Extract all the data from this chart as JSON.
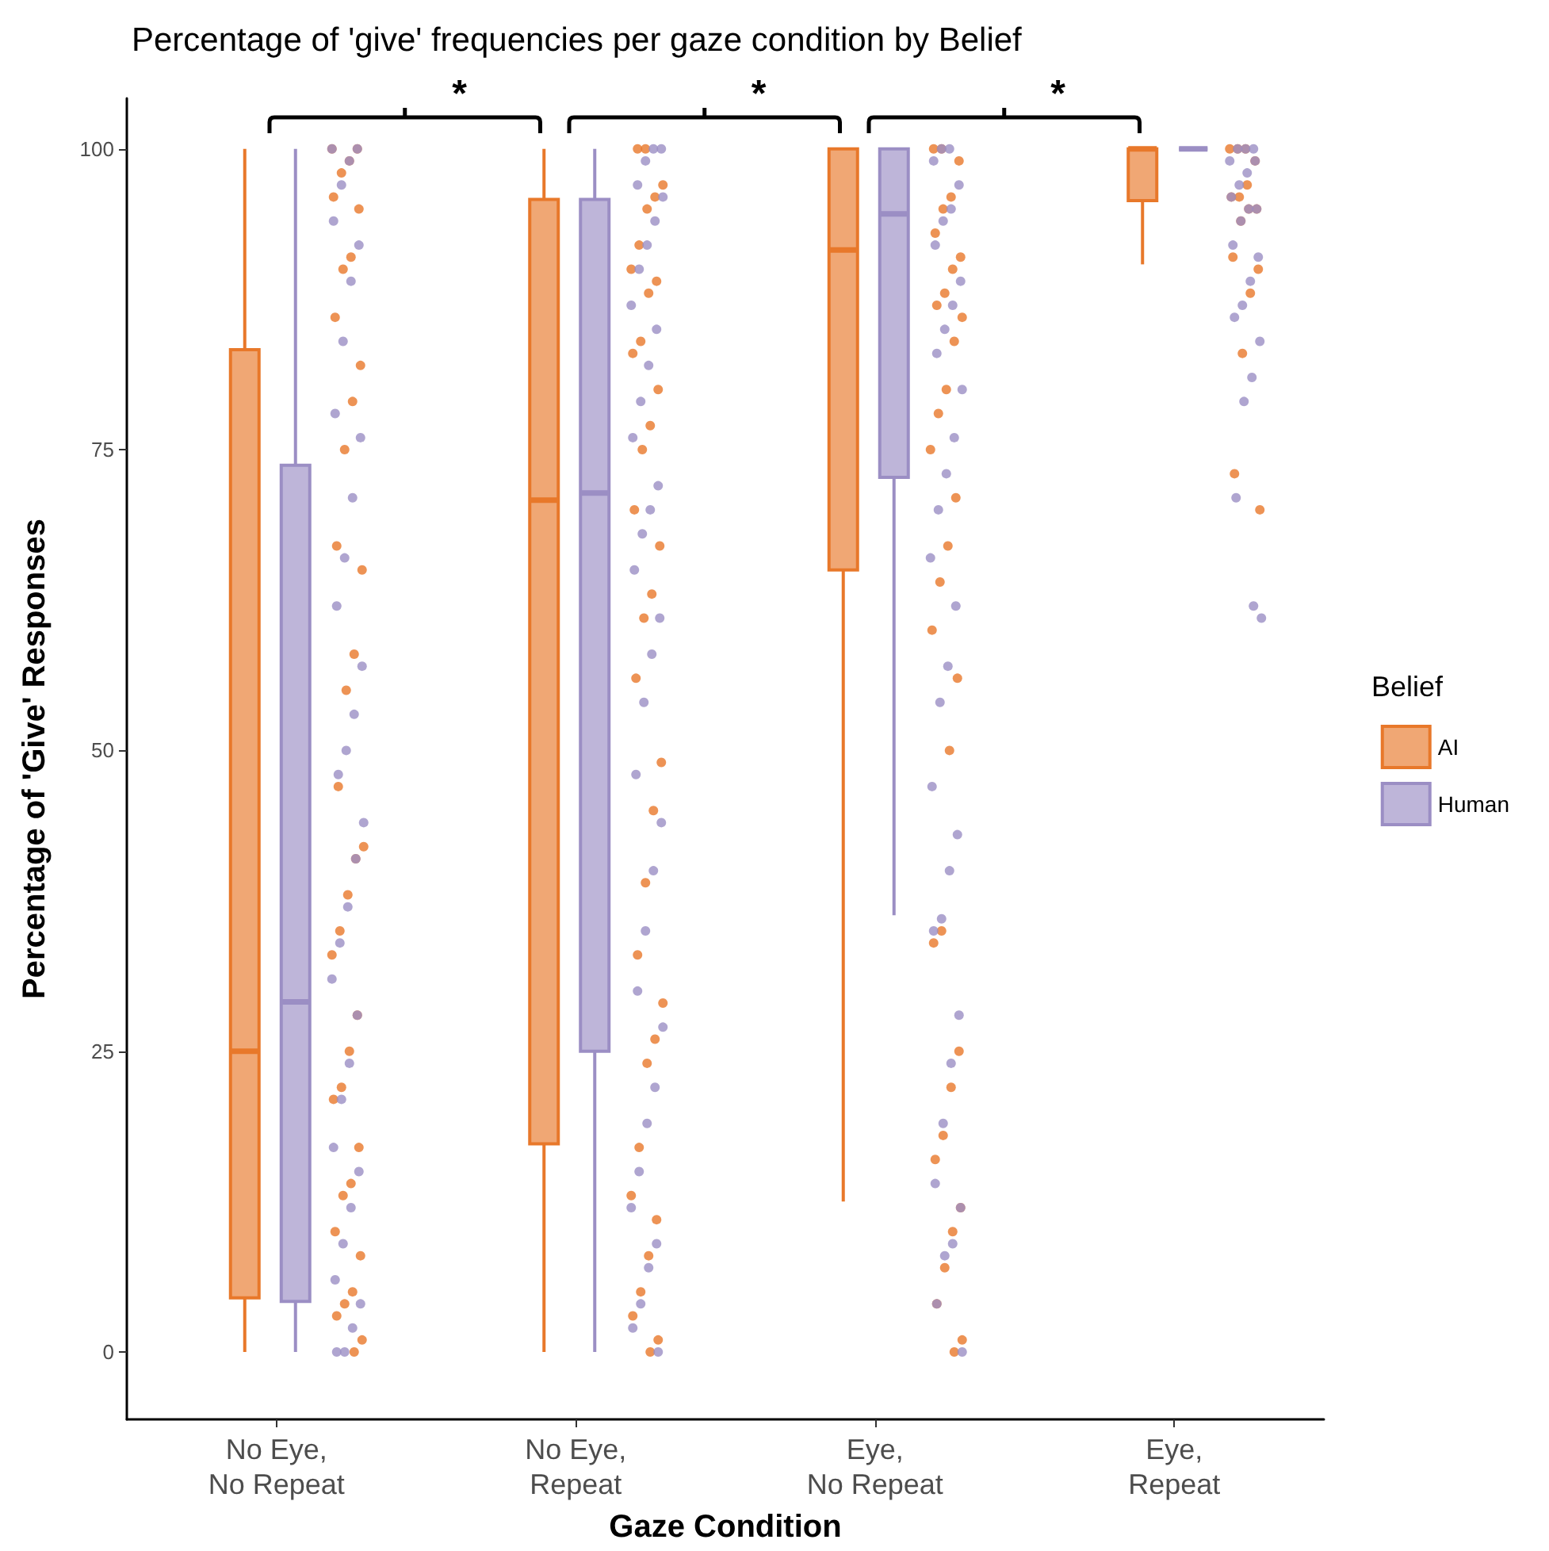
{
  "chart_data": {
    "type": "box",
    "title": "Percentage of 'give' frequencies per gaze condition by Belief",
    "xlabel": "Gaze Condition",
    "ylabel": "Percentage of 'Give' Responses",
    "legend_title": "Belief",
    "legend": "right",
    "marker": "circle",
    "grid": false,
    "categories": [
      "No Eye, No Repeat",
      "No Eye, Repeat",
      "Eye, No Repeat",
      "Eye, Repeat"
    ],
    "ylim": [
      -5.6,
      104.2
    ],
    "yticks": [
      0,
      25,
      50,
      75,
      100
    ],
    "annotations": [
      "*",
      "*",
      "*"
    ],
    "series": [
      {
        "name": "AI",
        "color": "#e8782a",
        "boxes": [
          {
            "low": 0,
            "q1": 4.5,
            "median": 25,
            "q3": 83.3,
            "high": 100
          },
          {
            "low": 0,
            "q1": 17.3,
            "median": 70.8,
            "q3": 95.8,
            "high": 100
          },
          {
            "low": 12.5,
            "q1": 65,
            "median": 91.6,
            "q3": 100,
            "high": 100
          },
          {
            "low": 90.4,
            "q1": 95.7,
            "median": 100,
            "q3": 100,
            "high": 100
          }
        ]
      },
      {
        "name": "Human",
        "color": "#9b8ec4",
        "boxes": [
          {
            "low": 0,
            "q1": 4.2,
            "median": 29.1,
            "q3": 73.7,
            "high": 100
          },
          {
            "low": 0,
            "q1": 25,
            "median": 71.4,
            "q3": 95.8,
            "high": 100
          },
          {
            "low": 36.3,
            "q1": 72.7,
            "median": 94.6,
            "q3": 100,
            "high": 100
          },
          {
            "low": 100,
            "q1": 100,
            "median": 100,
            "q3": 100,
            "high": 100
          }
        ]
      },
      {
        "type": "scatter",
        "color": "#e8782a",
        "x": [
          "No Eye, No Repeat",
          "No Eye, No Repeat",
          "No Eye, No Repeat",
          "No Eye, No Repeat",
          "No Eye, No Repeat",
          "No Eye, No Repeat",
          "No Eye, No Repeat",
          "No Eye, No Repeat",
          "No Eye, No Repeat",
          "No Eye, No Repeat",
          "No Eye, No Repeat",
          "No Eye, No Repeat",
          "No Eye, No Repeat",
          "No Eye, No Repeat",
          "No Eye, No Repeat",
          "No Eye, No Repeat",
          "No Eye, No Repeat",
          "No Eye, No Repeat",
          "No Eye, No Repeat",
          "No Eye, No Repeat",
          "No Eye, No Repeat",
          "No Eye, No Repeat",
          "No Eye, No Repeat",
          "No Eye, No Repeat",
          "No Eye, No Repeat",
          "No Eye, No Repeat",
          "No Eye, No Repeat",
          "No Eye, No Repeat",
          "No Eye, No Repeat",
          "No Eye, No Repeat",
          "No Eye, No Repeat",
          "No Eye, No Repeat",
          "No Eye, No Repeat",
          "No Eye, No Repeat",
          "No Eye, No Repeat",
          "No Eye, No Repeat",
          "No Eye, Repeat",
          "No Eye, Repeat",
          "No Eye, Repeat",
          "No Eye, Repeat",
          "No Eye, Repeat",
          "No Eye, Repeat",
          "No Eye, Repeat",
          "No Eye, Repeat",
          "No Eye, Repeat",
          "No Eye, Repeat",
          "No Eye, Repeat",
          "No Eye, Repeat",
          "No Eye, Repeat",
          "No Eye, Repeat",
          "No Eye, Repeat",
          "No Eye, Repeat",
          "No Eye, Repeat",
          "No Eye, Repeat",
          "No Eye, Repeat",
          "No Eye, Repeat",
          "No Eye, Repeat",
          "No Eye, Repeat",
          "No Eye, Repeat",
          "No Eye, Repeat",
          "No Eye, Repeat",
          "No Eye, Repeat",
          "No Eye, Repeat",
          "No Eye, Repeat",
          "No Eye, Repeat",
          "No Eye, Repeat",
          "No Eye, Repeat",
          "No Eye, Repeat",
          "No Eye, Repeat",
          "No Eye, Repeat",
          "Eye, No Repeat",
          "Eye, No Repeat",
          "Eye, No Repeat",
          "Eye, No Repeat",
          "Eye, No Repeat",
          "Eye, No Repeat",
          "Eye, No Repeat",
          "Eye, No Repeat",
          "Eye, No Repeat",
          "Eye, No Repeat",
          "Eye, No Repeat",
          "Eye, No Repeat",
          "Eye, No Repeat",
          "Eye, No Repeat",
          "Eye, No Repeat",
          "Eye, No Repeat",
          "Eye, No Repeat",
          "Eye, No Repeat",
          "Eye, No Repeat",
          "Eye, No Repeat",
          "Eye, No Repeat",
          "Eye, No Repeat",
          "Eye, No Repeat",
          "Eye, No Repeat",
          "Eye, No Repeat",
          "Eye, No Repeat",
          "Eye, No Repeat",
          "Eye, No Repeat",
          "Eye, No Repeat",
          "Eye, No Repeat",
          "Eye, No Repeat",
          "Eye, No Repeat",
          "Eye, No Repeat",
          "Eye, Repeat",
          "Eye, Repeat",
          "Eye, Repeat",
          "Eye, Repeat",
          "Eye, Repeat",
          "Eye, Repeat",
          "Eye, Repeat",
          "Eye, Repeat",
          "Eye, Repeat",
          "Eye, Repeat",
          "Eye, Repeat",
          "Eye, Repeat",
          "Eye, Repeat",
          "Eye, Repeat",
          "Eye, Repeat",
          "Eye, Repeat"
        ],
        "values": [
          100,
          100,
          99,
          98,
          96,
          95,
          91,
          90,
          86,
          82,
          79,
          75,
          67,
          65,
          58,
          55,
          47,
          42,
          41,
          38,
          35,
          33,
          28,
          25,
          22,
          21,
          17,
          14,
          13,
          10,
          8,
          5,
          4,
          3,
          1,
          0,
          100,
          100,
          97,
          96,
          95,
          92,
          90,
          89,
          88,
          84,
          83,
          80,
          77,
          75,
          70,
          67,
          63,
          61,
          56,
          49,
          45,
          39,
          33,
          29,
          26,
          24,
          17,
          13,
          11,
          8,
          5,
          3,
          1,
          0,
          100,
          100,
          99,
          96,
          95,
          93,
          91,
          90,
          88,
          87,
          86,
          84,
          80,
          78,
          75,
          71,
          67,
          64,
          60,
          56,
          50,
          35,
          34,
          25,
          22,
          18,
          16,
          12,
          10,
          7,
          4,
          1,
          0,
          100,
          100,
          100,
          99,
          97,
          96,
          96,
          95,
          95,
          94,
          91,
          90,
          88,
          83,
          73,
          70
        ]
      },
      {
        "type": "scatter",
        "color": "#9b8ec4",
        "x": [
          "No Eye, No Repeat",
          "No Eye, No Repeat",
          "No Eye, No Repeat",
          "No Eye, No Repeat",
          "No Eye, No Repeat",
          "No Eye, No Repeat",
          "No Eye, No Repeat",
          "No Eye, No Repeat",
          "No Eye, No Repeat",
          "No Eye, No Repeat",
          "No Eye, No Repeat",
          "No Eye, No Repeat",
          "No Eye, No Repeat",
          "No Eye, No Repeat",
          "No Eye, No Repeat",
          "No Eye, No Repeat",
          "No Eye, No Repeat",
          "No Eye, No Repeat",
          "No Eye, No Repeat",
          "No Eye, No Repeat",
          "No Eye, No Repeat",
          "No Eye, No Repeat",
          "No Eye, No Repeat",
          "No Eye, No Repeat",
          "No Eye, No Repeat",
          "No Eye, No Repeat",
          "No Eye, No Repeat",
          "No Eye, No Repeat",
          "No Eye, No Repeat",
          "No Eye, No Repeat",
          "No Eye, No Repeat",
          "No Eye, No Repeat",
          "No Eye, No Repeat",
          "No Eye, No Repeat",
          "No Eye, Repeat",
          "No Eye, Repeat",
          "No Eye, Repeat",
          "No Eye, Repeat",
          "No Eye, Repeat",
          "No Eye, Repeat",
          "No Eye, Repeat",
          "No Eye, Repeat",
          "No Eye, Repeat",
          "No Eye, Repeat",
          "No Eye, Repeat",
          "No Eye, Repeat",
          "No Eye, Repeat",
          "No Eye, Repeat",
          "No Eye, Repeat",
          "No Eye, Repeat",
          "No Eye, Repeat",
          "No Eye, Repeat",
          "No Eye, Repeat",
          "No Eye, Repeat",
          "No Eye, Repeat",
          "No Eye, Repeat",
          "No Eye, Repeat",
          "No Eye, Repeat",
          "No Eye, Repeat",
          "No Eye, Repeat",
          "No Eye, Repeat",
          "No Eye, Repeat",
          "No Eye, Repeat",
          "No Eye, Repeat",
          "No Eye, Repeat",
          "No Eye, Repeat",
          "No Eye, Repeat",
          "No Eye, Repeat",
          "No Eye, Repeat",
          "Eye, No Repeat",
          "Eye, No Repeat",
          "Eye, No Repeat",
          "Eye, No Repeat",
          "Eye, No Repeat",
          "Eye, No Repeat",
          "Eye, No Repeat",
          "Eye, No Repeat",
          "Eye, No Repeat",
          "Eye, No Repeat",
          "Eye, No Repeat",
          "Eye, No Repeat",
          "Eye, No Repeat",
          "Eye, No Repeat",
          "Eye, No Repeat",
          "Eye, No Repeat",
          "Eye, No Repeat",
          "Eye, No Repeat",
          "Eye, No Repeat",
          "Eye, No Repeat",
          "Eye, No Repeat",
          "Eye, No Repeat",
          "Eye, No Repeat",
          "Eye, No Repeat",
          "Eye, No Repeat",
          "Eye, No Repeat",
          "Eye, No Repeat",
          "Eye, No Repeat",
          "Eye, No Repeat",
          "Eye, No Repeat",
          "Eye, No Repeat",
          "Eye, No Repeat",
          "Eye, No Repeat",
          "Eye, Repeat",
          "Eye, Repeat",
          "Eye, Repeat",
          "Eye, Repeat",
          "Eye, Repeat",
          "Eye, Repeat",
          "Eye, Repeat",
          "Eye, Repeat",
          "Eye, Repeat",
          "Eye, Repeat",
          "Eye, Repeat",
          "Eye, Repeat",
          "Eye, Repeat",
          "Eye, Repeat",
          "Eye, Repeat",
          "Eye, Repeat",
          "Eye, Repeat",
          "Eye, Repeat",
          "Eye, Repeat",
          "Eye, Repeat",
          "Eye, Repeat",
          "Eye, Repeat"
        ],
        "values": [
          100,
          100,
          99,
          97,
          94,
          92,
          89,
          84,
          78,
          76,
          71,
          66,
          62,
          57,
          53,
          50,
          48,
          44,
          41,
          37,
          34,
          31,
          28,
          24,
          21,
          17,
          15,
          12,
          9,
          6,
          4,
          2,
          0,
          0,
          100,
          100,
          99,
          97,
          96,
          94,
          92,
          90,
          87,
          85,
          82,
          79,
          76,
          72,
          70,
          68,
          65,
          61,
          58,
          54,
          48,
          44,
          40,
          35,
          30,
          27,
          22,
          19,
          15,
          12,
          9,
          7,
          4,
          2,
          0,
          100,
          100,
          99,
          97,
          95,
          94,
          92,
          89,
          87,
          85,
          83,
          80,
          76,
          73,
          70,
          66,
          62,
          57,
          54,
          47,
          43,
          40,
          36,
          35,
          28,
          24,
          19,
          14,
          12,
          9,
          8,
          4,
          0,
          100,
          100,
          100,
          99,
          99,
          98,
          97,
          96,
          95,
          95,
          94,
          92,
          91,
          89,
          87,
          86,
          84,
          81,
          79,
          71,
          61,
          62
        ]
      }
    ]
  }
}
